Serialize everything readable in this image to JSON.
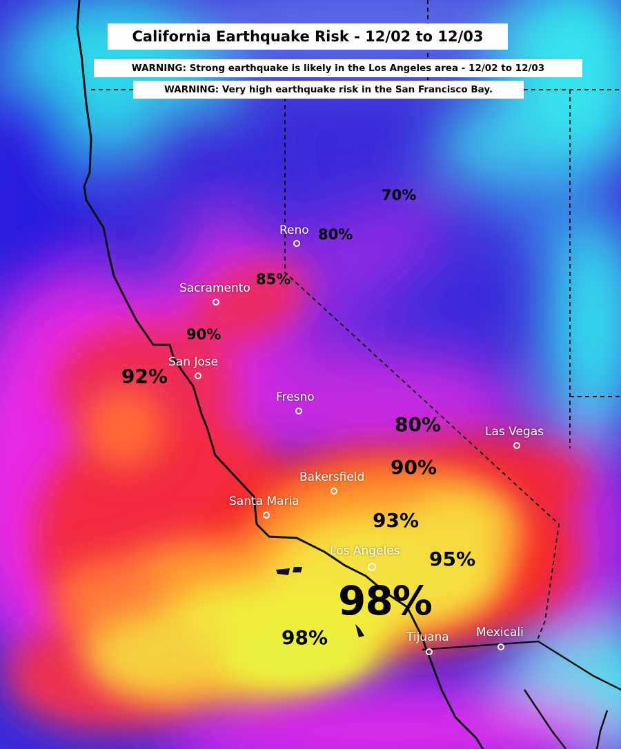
{
  "title": "California Earthquake Risk - 12/02 to 12/03",
  "warnings": [
    "WARNING: Strong earthquake is likely in the Los Angeles area - 12/02 to 12/03",
    "WARNING: Very high earthquake risk in the San Francisco Bay."
  ],
  "cities": {
    "reno": "Reno",
    "sacramento": "Sacramento",
    "san_jose": "San Jose",
    "fresno": "Fresno",
    "las_vegas": "Las Vegas",
    "bakersfield": "Bakersfield",
    "santa_maria": "Santa Maria",
    "los_angeles": "Los Angeles",
    "tijuana": "Tijuana",
    "mexicali": "Mexicali"
  },
  "risk_labels": {
    "r70": "70%",
    "r80_reno": "80%",
    "r85": "85%",
    "r90_bay": "90%",
    "r92": "92%",
    "r80_south": "80%",
    "r90_south": "90%",
    "r93": "93%",
    "r95": "95%",
    "r98_big": "98%",
    "r98_sea": "98%"
  },
  "colors": {
    "frame": "#000000",
    "cyan": "#2fe4ec",
    "blue": "#2a35e0",
    "purple": "#7a2be0",
    "magenta": "#e22ae6",
    "red": "#f22848",
    "orange": "#ff8a28",
    "yellow": "#f4f238",
    "banner_bg": "#ffffff"
  }
}
